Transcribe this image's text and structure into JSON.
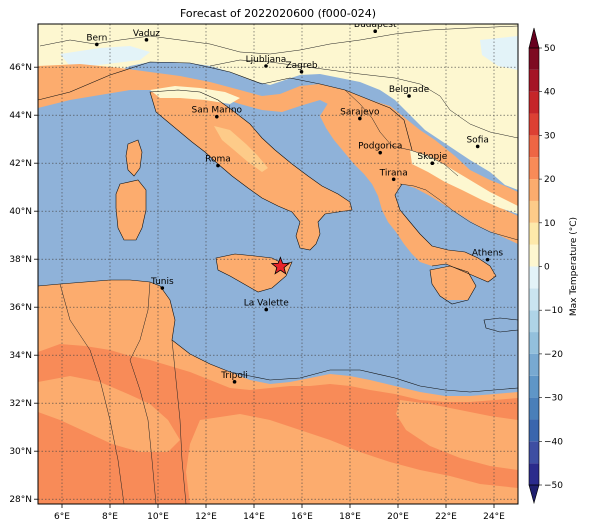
{
  "title": "Forecast of 2022020600 (f000-024)",
  "map": {
    "lon_range": [
      5,
      25
    ],
    "lat_range": [
      27.8,
      47.8
    ],
    "lon_ticks": [
      {
        "v": 6,
        "t": "6°E"
      },
      {
        "v": 8,
        "t": "8°E"
      },
      {
        "v": 10,
        "t": "10°E"
      },
      {
        "v": 12,
        "t": "12°E"
      },
      {
        "v": 14,
        "t": "14°E"
      },
      {
        "v": 16,
        "t": "16°E"
      },
      {
        "v": 18,
        "t": "18°E"
      },
      {
        "v": 20,
        "t": "20°E"
      },
      {
        "v": 22,
        "t": "22°E"
      },
      {
        "v": 24,
        "t": "24°E"
      }
    ],
    "lat_ticks": [
      {
        "v": 28,
        "t": "28°N"
      },
      {
        "v": 30,
        "t": "30°N"
      },
      {
        "v": 32,
        "t": "32°N"
      },
      {
        "v": 34,
        "t": "34°N"
      },
      {
        "v": 36,
        "t": "36°N"
      },
      {
        "v": 38,
        "t": "38°N"
      },
      {
        "v": 40,
        "t": "40°N"
      },
      {
        "v": 42,
        "t": "42°N"
      },
      {
        "v": 44,
        "t": "44°N"
      },
      {
        "v": 46,
        "t": "46°N"
      }
    ],
    "grid": true,
    "sea_color": "#8fb2d9",
    "star": {
      "lon": 15.1,
      "lat": 37.7,
      "color": "#e8242a"
    },
    "cities": [
      {
        "name": "Bern",
        "lon": 7.45,
        "lat": 46.95
      },
      {
        "name": "Vaduz",
        "lon": 9.52,
        "lat": 47.14
      },
      {
        "name": "Budapest",
        "lon": 19.05,
        "lat": 47.5
      },
      {
        "name": "Ljubljana",
        "lon": 14.5,
        "lat": 46.05
      },
      {
        "name": "Zagreb",
        "lon": 15.98,
        "lat": 45.81
      },
      {
        "name": "Belgrade",
        "lon": 20.46,
        "lat": 44.8
      },
      {
        "name": "San Marino",
        "lon": 12.45,
        "lat": 43.94
      },
      {
        "name": "Sarajevo",
        "lon": 18.41,
        "lat": 43.86
      },
      {
        "name": "Sofia",
        "lon": 23.32,
        "lat": 42.7
      },
      {
        "name": "Podgorica",
        "lon": 19.26,
        "lat": 42.44
      },
      {
        "name": "Skopje",
        "lon": 21.43,
        "lat": 42.0
      },
      {
        "name": "Roma",
        "lon": 12.5,
        "lat": 41.9
      },
      {
        "name": "Tirana",
        "lon": 19.82,
        "lat": 41.33
      },
      {
        "name": "Athens",
        "lon": 23.73,
        "lat": 37.98
      },
      {
        "name": "Tunis",
        "lon": 10.18,
        "lat": 36.8
      },
      {
        "name": "La Valette",
        "lon": 14.51,
        "lat": 35.9
      },
      {
        "name": "Tripoli",
        "lon": 13.19,
        "lat": 32.89
      }
    ]
  },
  "colorbar": {
    "label": "Max Temperature (°C)",
    "ticks": [
      "50",
      "40",
      "30",
      "20",
      "10",
      "0",
      "−10",
      "−20",
      "−30",
      "−40",
      "−50"
    ],
    "levels": [
      {
        "from": -50,
        "to": -45,
        "color": "#2b2b8c"
      },
      {
        "from": -45,
        "to": -40,
        "color": "#3e4ea2"
      },
      {
        "from": -40,
        "to": -35,
        "color": "#3a66ad"
      },
      {
        "from": -35,
        "to": -30,
        "color": "#4a7fb9"
      },
      {
        "from": -30,
        "to": -25,
        "color": "#5f96c7"
      },
      {
        "from": -25,
        "to": -20,
        "color": "#78a9d1"
      },
      {
        "from": -20,
        "to": -15,
        "color": "#93c0dc"
      },
      {
        "from": -15,
        "to": -10,
        "color": "#afd4e7"
      },
      {
        "from": -10,
        "to": -5,
        "color": "#cae4f0"
      },
      {
        "from": -5,
        "to": 0,
        "color": "#e3f3f8"
      },
      {
        "from": 0,
        "to": 5,
        "color": "#fdf7d0"
      },
      {
        "from": 5,
        "to": 10,
        "color": "#fde9aa"
      },
      {
        "from": 10,
        "to": 15,
        "color": "#fdcb89"
      },
      {
        "from": 15,
        "to": 20,
        "color": "#fcac6e"
      },
      {
        "from": 20,
        "to": 25,
        "color": "#f88b58"
      },
      {
        "from": 25,
        "to": 30,
        "color": "#ee6644"
      },
      {
        "from": 30,
        "to": 35,
        "color": "#dc4033"
      },
      {
        "from": 35,
        "to": 40,
        "color": "#c52529"
      },
      {
        "from": 40,
        "to": 45,
        "color": "#a51426"
      },
      {
        "from": 45,
        "to": 50,
        "color": "#7e0a22"
      }
    ],
    "under_color": "#1f1f6e",
    "over_color": "#67001f"
  }
}
